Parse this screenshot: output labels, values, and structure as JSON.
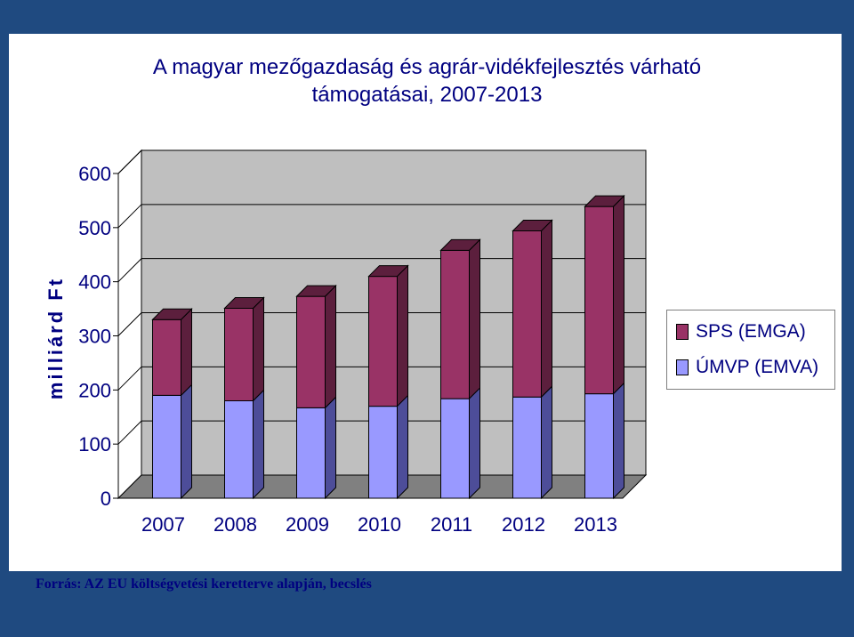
{
  "colors": {
    "sps_front": "#993366",
    "sps_side": "#5c1f3d",
    "umvp_front": "#9999ff",
    "umvp_side": "#4d4d99",
    "wall": "#bfbfbf",
    "floor": "#808080",
    "text": "#000080",
    "frame": "#1f4a80"
  },
  "source": "Forrás: AZ EU költségvetési keretterve alapján, becslés",
  "chart_data": {
    "type": "bar",
    "stacked": true,
    "three_d": true,
    "title": "A magyar mezőgazdaság és agrár-vidékfejlesztés várható\ntámogatásai, 2007-2013",
    "xlabel": "",
    "ylabel": "milliárd Ft",
    "ylim": [
      0,
      600
    ],
    "yticks": [
      0,
      100,
      200,
      300,
      400,
      500,
      600
    ],
    "categories": [
      "2007",
      "2008",
      "2009",
      "2010",
      "2011",
      "2012",
      "2013"
    ],
    "series": [
      {
        "name": "ÚMVP (EMVA)",
        "values": [
          190,
          180,
          167,
          170,
          184,
          187,
          193
        ]
      },
      {
        "name": "SPS (EMGA)",
        "values": [
          140,
          171,
          206,
          240,
          274,
          307,
          346
        ]
      }
    ],
    "legend": {
      "position": "right",
      "entries": [
        "SPS (EMGA)",
        "ÚMVP (EMVA)"
      ]
    },
    "grid": true
  }
}
